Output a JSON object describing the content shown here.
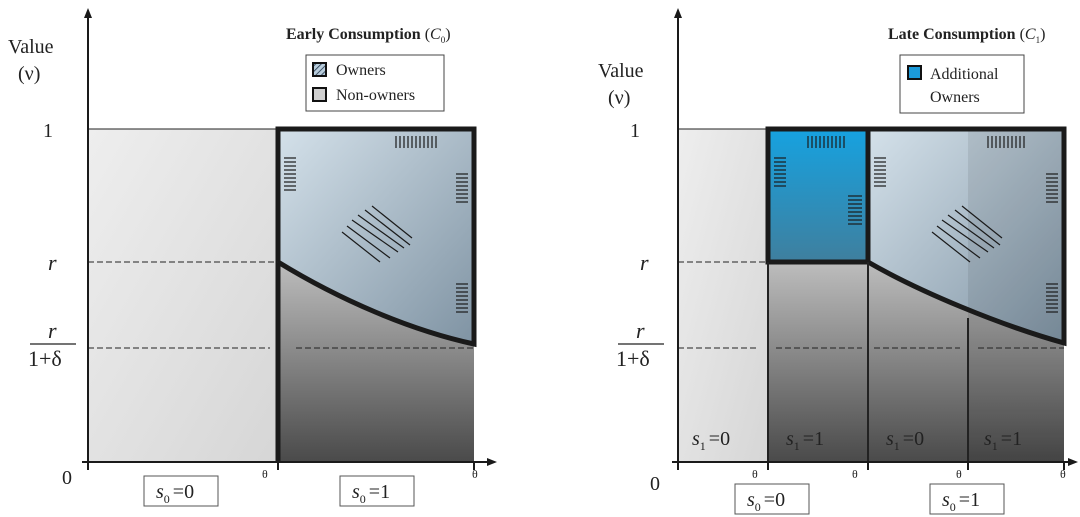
{
  "left_panel": {
    "title": "Early Consumption",
    "title_symbol": "C",
    "title_subscript": "0",
    "y_axis_label": "Value",
    "y_axis_symbol": "(ν)",
    "tick_one": "1",
    "tick_zero": "0",
    "tick_r": "r",
    "tick_r_denominator": "1+δ",
    "theta_label_1": "θ",
    "theta_label_2": "θ",
    "legend": [
      {
        "label": "Owners",
        "swatch": "hatched-light-blue"
      },
      {
        "label": "Non-owners",
        "swatch": "gray"
      }
    ],
    "state_labels": [
      {
        "var": "s",
        "sub": "0",
        "eq": "=0"
      },
      {
        "var": "s",
        "sub": "0",
        "eq": "=1"
      }
    ]
  },
  "right_panel": {
    "title": "Late Consumption",
    "title_symbol": "C",
    "title_subscript": "1",
    "y_axis_label": "Value",
    "y_axis_symbol": "(ν)",
    "tick_one": "1",
    "tick_zero": "0",
    "tick_r": "r",
    "tick_r_denominator": "1+δ",
    "theta_labels": [
      "θ",
      "θ",
      "θ",
      "θ"
    ],
    "legend": [
      {
        "label": "Additional",
        "label2": "Owners",
        "swatch": "bright-blue"
      }
    ],
    "inner_labels": [
      {
        "var": "s",
        "sub": "1",
        "eq": "=0"
      },
      {
        "var": "s",
        "sub": "1",
        "eq": "=1"
      },
      {
        "var": "s",
        "sub": "1",
        "eq": "=0"
      },
      {
        "var": "s",
        "sub": "1",
        "eq": "=1"
      }
    ],
    "state_labels": [
      {
        "var": "s",
        "sub": "0",
        "eq": "=0"
      },
      {
        "var": "s",
        "sub": "0",
        "eq": "=1"
      }
    ]
  },
  "colors": {
    "owners_fill": "#b5c8d6",
    "additional_owners_fill": "#1b9ad9",
    "nonowner_dark": "#5a5a5a",
    "nonowner_light": "#c8c8c8",
    "background_light": "#e8e8e8",
    "outline": "#1a1a1a"
  }
}
